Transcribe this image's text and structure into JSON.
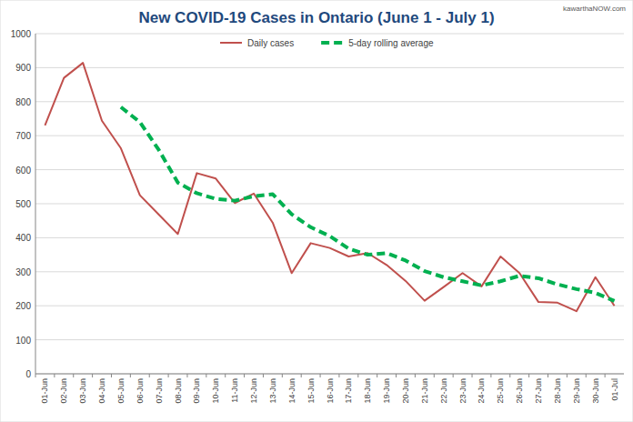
{
  "chart_data": {
    "type": "line",
    "title": "New COVID-19 Cases in Ontario (June 1 - July 1)",
    "annotation": "kawarthaNOW.com",
    "categories": [
      "01-Jun",
      "02-Jun",
      "03-Jun",
      "04-Jun",
      "05-Jun",
      "06-Jun",
      "07-Jun",
      "08-Jun",
      "09-Jun",
      "10-Jun",
      "11-Jun",
      "12-Jun",
      "13-Jun",
      "14-Jun",
      "15-Jun",
      "16-Jun",
      "17-Jun",
      "18-Jun",
      "19-Jun",
      "20-Jun",
      "21-Jun",
      "22-Jun",
      "23-Jun",
      "24-Jun",
      "25-Jun",
      "26-Jun",
      "27-Jun",
      "28-Jun",
      "29-Jun",
      "30-Jun",
      "01-Jul"
    ],
    "series": [
      {
        "name": "Daily cases",
        "color": "#c0504d",
        "line_style": "solid",
        "values": [
          730,
          870,
          914,
          744,
          663,
          525,
          468,
          411,
          590,
          574,
          502,
          530,
          444,
          296,
          384,
          370,
          345,
          355,
          320,
          273,
          215,
          255,
          296,
          257,
          345,
          296,
          211,
          209,
          184,
          284,
          200
        ]
      },
      {
        "name": "5-day rolling average",
        "color": "#00b050",
        "line_style": "dashed",
        "values": [
          null,
          null,
          null,
          null,
          784,
          740,
          658,
          562,
          531,
          514,
          509,
          522,
          528,
          469,
          431,
          405,
          368,
          350,
          355,
          333,
          302,
          284,
          272,
          260,
          272,
          288,
          281,
          263,
          249,
          238,
          214
        ]
      }
    ],
    "ylim": [
      0,
      1000
    ],
    "yticks": [
      0,
      100,
      200,
      300,
      400,
      500,
      600,
      700,
      800,
      900,
      1000
    ],
    "grid": true,
    "legend": "top"
  }
}
